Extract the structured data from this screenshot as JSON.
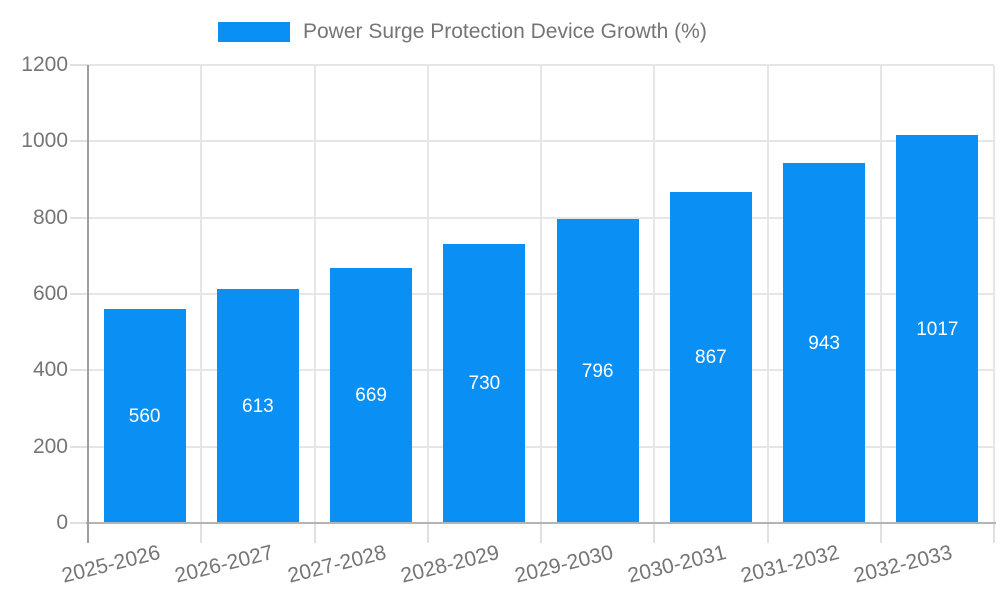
{
  "chart_data": {
    "type": "bar",
    "title": "Power Surge Protection Device Growth (%)",
    "series_name": "Power Surge Protection Device Growth (%)",
    "categories": [
      "2025-2026",
      "2026-2027",
      "2027-2028",
      "2028-2029",
      "2029-2030",
      "2030-2031",
      "2031-2032",
      "2032-2033"
    ],
    "values": [
      560,
      613,
      669,
      730,
      796,
      867,
      943,
      1017
    ],
    "yticks": [
      0,
      200,
      400,
      600,
      800,
      1000,
      1200
    ],
    "ylim": [
      0,
      1200
    ],
    "xlabel": "",
    "ylabel": "",
    "grid": true,
    "legend_position": "top",
    "x_label_rotation_deg": -14,
    "colors": {
      "bar": "#0A8FF5",
      "value_label": "#FFFFFF",
      "axis_text": "#757575",
      "gridline": "#E6E6E6",
      "tick_line": "#E0E0E0",
      "axis_line_y": "#9E9E9E",
      "axis_line_x": "#B3B3B3"
    }
  }
}
